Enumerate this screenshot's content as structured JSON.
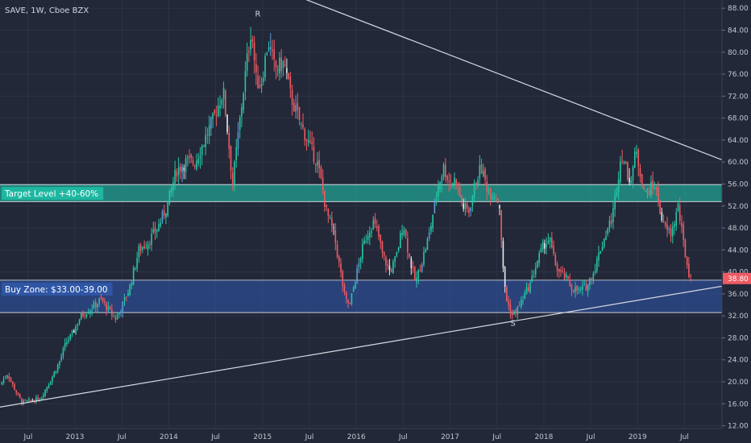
{
  "chart_data": {
    "type": "candlestick",
    "symbol_title": "SAVE, 1W, Cboe BZX",
    "x_tick_labels": [
      "Jul",
      "2013",
      "Jul",
      "2014",
      "Jul",
      "2015",
      "Jul",
      "2016",
      "Jul",
      "2017",
      "Jul",
      "2018",
      "Jul",
      "2019",
      "Jul"
    ],
    "x_tick_dates": [
      2012.5,
      2013.0,
      2013.5,
      2014.0,
      2014.5,
      2015.0,
      2015.5,
      2016.0,
      2016.5,
      2017.0,
      2017.5,
      2018.0,
      2018.5,
      2019.0,
      2019.5
    ],
    "y_ticks": [
      12,
      16,
      20,
      24,
      28,
      32,
      36,
      40,
      44,
      48,
      52,
      56,
      60,
      64,
      68,
      72,
      76,
      80,
      84,
      88
    ],
    "y_tick_labels": [
      "12.00",
      "16.00",
      "20.00",
      "24.00",
      "28.00",
      "32.00",
      "36.00",
      "40.00",
      "44.00",
      "48.00",
      "52.00",
      "56.00",
      "60.00",
      "64.00",
      "68.00",
      "72.00",
      "76.00",
      "80.00",
      "84.00",
      "88.00"
    ],
    "x_range": [
      2012.2,
      2019.9
    ],
    "y_range": [
      11.5,
      89.5
    ],
    "grid": true,
    "last_price": 38.8,
    "last_price_label": "38.80",
    "price_anchors": [
      [
        2012.22,
        19.5
      ],
      [
        2012.3,
        21.5
      ],
      [
        2012.38,
        18.5
      ],
      [
        2012.45,
        16.3
      ],
      [
        2012.55,
        16.5
      ],
      [
        2012.65,
        17.0
      ],
      [
        2012.75,
        20.0
      ],
      [
        2012.85,
        23.5
      ],
      [
        2012.92,
        27.0
      ],
      [
        2013.0,
        29.0
      ],
      [
        2013.08,
        32.0
      ],
      [
        2013.2,
        33.5
      ],
      [
        2013.3,
        35.0
      ],
      [
        2013.38,
        33.0
      ],
      [
        2013.45,
        31.5
      ],
      [
        2013.5,
        33.0
      ],
      [
        2013.6,
        37.0
      ],
      [
        2013.7,
        44.0
      ],
      [
        2013.8,
        45.5
      ],
      [
        2013.9,
        48.0
      ],
      [
        2014.0,
        52.0
      ],
      [
        2014.1,
        58.5
      ],
      [
        2014.2,
        60.0
      ],
      [
        2014.3,
        60.0
      ],
      [
        2014.4,
        64.0
      ],
      [
        2014.5,
        68.0
      ],
      [
        2014.6,
        73.0
      ],
      [
        2014.65,
        65.0
      ],
      [
        2014.7,
        56.0
      ],
      [
        2014.78,
        68.0
      ],
      [
        2014.85,
        78.0
      ],
      [
        2014.9,
        84.5
      ],
      [
        2014.95,
        75.0
      ],
      [
        2015.0,
        74.0
      ],
      [
        2015.08,
        82.0
      ],
      [
        2015.15,
        77.0
      ],
      [
        2015.25,
        78.0
      ],
      [
        2015.32,
        72.0
      ],
      [
        2015.38,
        69.0
      ],
      [
        2015.45,
        66.0
      ],
      [
        2015.52,
        63.0
      ],
      [
        2015.6,
        60.0
      ],
      [
        2015.65,
        56.0
      ],
      [
        2015.7,
        51.0
      ],
      [
        2015.78,
        47.0
      ],
      [
        2015.85,
        40.0
      ],
      [
        2015.9,
        35.0
      ],
      [
        2015.95,
        34.0
      ],
      [
        2016.0,
        38.0
      ],
      [
        2016.08,
        44.0
      ],
      [
        2016.15,
        47.5
      ],
      [
        2016.2,
        49.0
      ],
      [
        2016.25,
        47.0
      ],
      [
        2016.3,
        43.0
      ],
      [
        2016.38,
        40.0
      ],
      [
        2016.45,
        43.0
      ],
      [
        2016.52,
        49.0
      ],
      [
        2016.58,
        43.0
      ],
      [
        2016.65,
        38.0
      ],
      [
        2016.72,
        42.0
      ],
      [
        2016.8,
        47.0
      ],
      [
        2016.88,
        55.0
      ],
      [
        2016.95,
        59.0
      ],
      [
        2017.02,
        56.0
      ],
      [
        2017.08,
        57.0
      ],
      [
        2017.15,
        52.0
      ],
      [
        2017.22,
        51.0
      ],
      [
        2017.3,
        57.0
      ],
      [
        2017.35,
        59.0
      ],
      [
        2017.42,
        55.0
      ],
      [
        2017.5,
        54.0
      ],
      [
        2017.55,
        52.0
      ],
      [
        2017.58,
        41.0
      ],
      [
        2017.62,
        35.0
      ],
      [
        2017.68,
        32.0
      ],
      [
        2017.75,
        33.5
      ],
      [
        2017.82,
        36.0
      ],
      [
        2017.88,
        38.0
      ],
      [
        2017.95,
        42.0
      ],
      [
        2018.02,
        45.0
      ],
      [
        2018.08,
        46.0
      ],
      [
        2018.13,
        42.0
      ],
      [
        2018.18,
        40.0
      ],
      [
        2018.25,
        39.0
      ],
      [
        2018.32,
        37.0
      ],
      [
        2018.4,
        36.5
      ],
      [
        2018.48,
        37.5
      ],
      [
        2018.55,
        40.0
      ],
      [
        2018.62,
        44.0
      ],
      [
        2018.68,
        47.0
      ],
      [
        2018.75,
        50.0
      ],
      [
        2018.8,
        56.0
      ],
      [
        2018.85,
        62.0
      ],
      [
        2018.9,
        58.0
      ],
      [
        2018.95,
        57.0
      ],
      [
        2019.0,
        62.0
      ],
      [
        2019.05,
        58.0
      ],
      [
        2019.1,
        54.0
      ],
      [
        2019.15,
        55.0
      ],
      [
        2019.2,
        56.0
      ],
      [
        2019.25,
        52.0
      ],
      [
        2019.3,
        48.0
      ],
      [
        2019.38,
        47.0
      ],
      [
        2019.45,
        52.0
      ],
      [
        2019.5,
        46.0
      ],
      [
        2019.55,
        41.0
      ],
      [
        2019.58,
        38.8
      ]
    ],
    "trendlines": [
      {
        "name": "upper-resistance-trendline",
        "x1": 2014.0,
        "y1": 99.2,
        "x2": 2019.9,
        "y2": 60.4,
        "color": "#d7dbe3"
      },
      {
        "name": "lower-support-trendline",
        "x1": 2012.2,
        "y1": 15.4,
        "x2": 2019.9,
        "y2": 37.4,
        "color": "#d7dbe3"
      }
    ],
    "zones": [
      {
        "name": "target-zone",
        "label": "Target Level +40-60%",
        "y_low": 52.8,
        "y_high": 55.9,
        "fill": "#1fb9a3",
        "opacity": 0.62
      },
      {
        "name": "buy-zone",
        "label": "Buy Zone: $33.00-39.00",
        "y_low": 32.6,
        "y_high": 38.5,
        "fill": "#2f57a8",
        "opacity": 0.58
      }
    ],
    "annotations": [
      {
        "name": "resistance-peak-letter",
        "text": "R",
        "x": 2014.95,
        "y": 86.5
      },
      {
        "name": "support-low-letter",
        "text": "S",
        "x": 2017.67,
        "y": 30.2
      }
    ],
    "colors": {
      "background": "#232838",
      "grid": "#2d3345",
      "up": "#26c6a4",
      "down": "#ef5b63",
      "neutral_up": "#5b9bd5",
      "neutral_down": "#e5e8ee",
      "axis_text": "#c2c6ce",
      "price_tag": "#ef5b63"
    }
  }
}
